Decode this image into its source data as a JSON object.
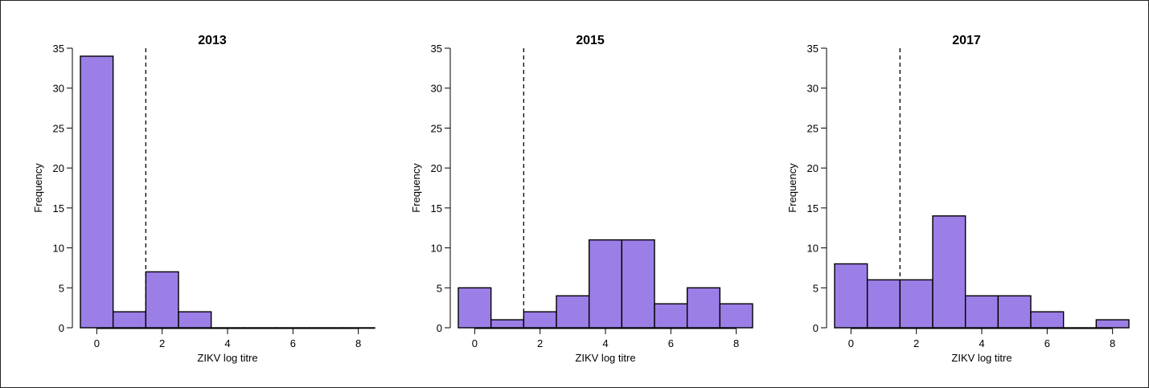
{
  "chart_data": [
    {
      "type": "bar",
      "title": "2013",
      "xlabel": "ZIKV log titre",
      "ylabel": "Frequency",
      "bin_width": 1,
      "bin_centers": [
        0,
        1,
        2,
        3,
        4,
        5,
        6,
        7,
        8
      ],
      "values": [
        34,
        2,
        7,
        2,
        0,
        0,
        0,
        0,
        0
      ],
      "xlim": [
        -0.5,
        8.5
      ],
      "ylim": [
        0,
        35
      ],
      "xticks": [
        0,
        2,
        4,
        6,
        8
      ],
      "yticks": [
        0,
        5,
        10,
        15,
        20,
        25,
        30,
        35
      ],
      "threshold": 1.5,
      "bar_color": "#9b7fe6",
      "grid": false
    },
    {
      "type": "bar",
      "title": "2015",
      "xlabel": "ZIKV log titre",
      "ylabel": "Frequency",
      "bin_width": 1,
      "bin_centers": [
        0,
        1,
        2,
        3,
        4,
        5,
        6,
        7,
        8
      ],
      "values": [
        5,
        1,
        2,
        4,
        11,
        11,
        3,
        5,
        3
      ],
      "xlim": [
        -0.5,
        8.5
      ],
      "ylim": [
        0,
        35
      ],
      "xticks": [
        0,
        2,
        4,
        6,
        8
      ],
      "yticks": [
        0,
        5,
        10,
        15,
        20,
        25,
        30,
        35
      ],
      "threshold": 1.5,
      "bar_color": "#9b7fe6",
      "grid": false
    },
    {
      "type": "bar",
      "title": "2017",
      "xlabel": "ZIKV log titre",
      "ylabel": "Frequency",
      "bin_width": 1,
      "bin_centers": [
        0,
        1,
        2,
        3,
        4,
        5,
        6,
        7,
        8
      ],
      "values": [
        8,
        6,
        6,
        14,
        4,
        4,
        2,
        0,
        1
      ],
      "xlim": [
        -0.5,
        8.5
      ],
      "ylim": [
        0,
        35
      ],
      "xticks": [
        0,
        2,
        4,
        6,
        8
      ],
      "yticks": [
        0,
        5,
        10,
        15,
        20,
        25,
        30,
        35
      ],
      "threshold": 1.5,
      "bar_color": "#9b7fe6",
      "grid": false
    }
  ]
}
